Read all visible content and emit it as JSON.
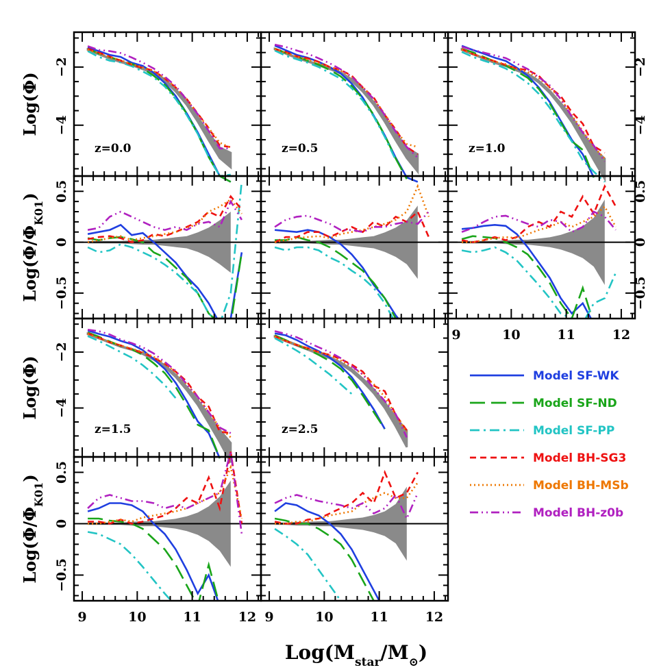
{
  "chart_data": {
    "type": "line",
    "xlabel": "Log(M_star/M_⊙)",
    "ylabel_top": "Log(Φ)",
    "ylabel_bottom": "Log(Φ/Φ_K01)",
    "xlim": [
      8.85,
      12.25
    ],
    "xticks": [
      9,
      10,
      11,
      12
    ],
    "ylim_top": [
      -5.75,
      -0.8
    ],
    "yticks_top": [
      -2,
      -4
    ],
    "ylim_bottom": [
      -0.75,
      0.65
    ],
    "yticks_bottom": [
      0.5,
      0,
      -0.5
    ],
    "x": [
      9.1,
      9.3,
      9.5,
      9.7,
      9.9,
      10.1,
      10.3,
      10.5,
      10.7,
      10.9,
      11.1,
      11.3,
      11.5,
      11.7,
      11.9
    ],
    "legend": [
      {
        "label": "Model SF-WK",
        "color": "#1f3fe0",
        "style": "solid"
      },
      {
        "label": "Model SF-ND",
        "color": "#1aa51a",
        "style": "longdash"
      },
      {
        "label": "Model SF-PP",
        "color": "#22c4c4",
        "style": "dashdot"
      },
      {
        "label": "Model BH-SG3",
        "color": "#ee1111",
        "style": "dash"
      },
      {
        "label": "Model BH-MSb",
        "color": "#ee7700",
        "style": "dotted"
      },
      {
        "label": "Model BH-z0b",
        "color": "#b020c0",
        "style": "dashdotdot"
      }
    ],
    "panels": [
      {
        "z": "z=0.0",
        "obs": [
          -1.4,
          -1.55,
          -1.7,
          -1.82,
          -1.92,
          -2.05,
          -2.2,
          -2.45,
          -2.8,
          -3.25,
          -3.8,
          -4.4,
          -4.95,
          -5.2,
          null
        ],
        "obs_err": [
          0.01,
          0.01,
          0.01,
          0.01,
          0.015,
          0.02,
          0.02,
          0.03,
          0.04,
          0.05,
          0.08,
          0.12,
          0.18,
          0.25,
          null
        ],
        "ratio": {
          "SF-WK": [
            0.08,
            0.1,
            0.12,
            0.17,
            0.07,
            0.09,
            0.0,
            -0.1,
            -0.2,
            -0.34,
            -0.45,
            -0.6,
            -0.8,
            -0.75,
            -0.1
          ],
          "SF-ND": [
            0.04,
            0.02,
            0.04,
            0.05,
            0.03,
            0.0,
            -0.1,
            -0.15,
            -0.25,
            -0.35,
            -0.5,
            -0.7,
            -0.8,
            -0.8,
            -0.1
          ],
          "SF-PP": [
            -0.05,
            -0.1,
            -0.08,
            -0.02,
            -0.05,
            -0.1,
            -0.15,
            -0.22,
            -0.3,
            -0.4,
            -0.5,
            -0.7,
            -0.8,
            -0.5,
            0.6
          ],
          "BH-SG3": [
            0.03,
            0.05,
            0.06,
            0.04,
            0.0,
            0.02,
            0.08,
            0.06,
            0.1,
            0.15,
            0.2,
            0.3,
            0.25,
            0.45,
            0.32
          ],
          "BH-MSb": [
            0.0,
            0.02,
            0.04,
            0.06,
            0.02,
            0.04,
            0.06,
            0.08,
            0.1,
            0.14,
            0.18,
            0.3,
            0.35,
            0.42,
            0.28
          ],
          "BH-z0b": [
            0.12,
            0.14,
            0.25,
            0.3,
            0.25,
            0.2,
            0.15,
            0.12,
            0.15,
            0.12,
            0.18,
            0.2,
            0.15,
            0.4,
            0.22
          ]
        }
      },
      {
        "z": "z=0.5",
        "obs": [
          -1.38,
          -1.53,
          -1.68,
          -1.8,
          -1.92,
          -2.05,
          -2.2,
          -2.45,
          -2.8,
          -3.25,
          -3.8,
          -4.4,
          -4.95,
          -5.3,
          null
        ],
        "obs_err": [
          0.01,
          0.01,
          0.01,
          0.01,
          0.015,
          0.02,
          0.02,
          0.03,
          0.04,
          0.05,
          0.08,
          0.12,
          0.18,
          0.3,
          null
        ],
        "ratio": {
          "SF-WK": [
            0.12,
            0.11,
            0.1,
            0.12,
            0.1,
            0.05,
            -0.02,
            -0.12,
            -0.25,
            -0.42,
            -0.55,
            -0.72,
            -0.85,
            -0.9,
            null
          ],
          "SF-ND": [
            0.02,
            0.02,
            0.05,
            0.02,
            0.0,
            -0.05,
            -0.12,
            -0.2,
            -0.28,
            -0.4,
            -0.55,
            -0.75,
            -0.9,
            null,
            null
          ],
          "SF-PP": [
            -0.05,
            -0.08,
            -0.05,
            -0.05,
            -0.08,
            -0.15,
            -0.2,
            -0.28,
            -0.35,
            -0.45,
            -0.6,
            -0.8,
            null,
            null,
            null
          ],
          "BH-SG3": [
            0.0,
            0.05,
            0.05,
            0.1,
            0.1,
            0.05,
            0.1,
            0.15,
            0.1,
            0.2,
            0.15,
            0.25,
            0.2,
            0.3,
            0.05
          ],
          "BH-MSb": [
            0.0,
            0.02,
            0.04,
            0.05,
            0.06,
            0.04,
            0.08,
            0.1,
            0.12,
            0.15,
            0.18,
            0.22,
            0.3,
            0.55,
            0.25
          ],
          "BH-z0b": [
            0.15,
            0.22,
            0.25,
            0.26,
            0.22,
            0.18,
            0.12,
            0.12,
            0.1,
            0.15,
            0.15,
            0.18,
            0.2,
            0.18,
            0.3
          ]
        }
      },
      {
        "z": "z=1.0",
        "obs": [
          -1.4,
          -1.55,
          -1.7,
          -1.85,
          -1.95,
          -2.1,
          -2.25,
          -2.5,
          -2.85,
          -3.3,
          -3.8,
          -4.4,
          -5.0,
          -5.5,
          null
        ],
        "obs_err": [
          0.01,
          0.01,
          0.01,
          0.01,
          0.015,
          0.02,
          0.02,
          0.03,
          0.04,
          0.06,
          0.09,
          0.13,
          0.2,
          0.35,
          null
        ],
        "ratio": {
          "SF-WK": [
            0.13,
            0.14,
            0.16,
            0.17,
            0.16,
            0.08,
            -0.05,
            -0.2,
            -0.35,
            -0.55,
            -0.7,
            -0.6,
            -0.8,
            null,
            null
          ],
          "SF-ND": [
            0.03,
            0.06,
            0.05,
            0.04,
            0.0,
            -0.05,
            -0.12,
            -0.25,
            -0.4,
            -0.6,
            -0.75,
            -0.45,
            -0.8,
            null,
            null
          ],
          "SF-PP": [
            -0.08,
            -0.1,
            -0.08,
            -0.05,
            -0.1,
            -0.18,
            -0.3,
            -0.42,
            -0.55,
            -0.7,
            -0.75,
            -0.8,
            -0.6,
            -0.55,
            -0.3
          ],
          "BH-SG3": [
            0.02,
            0.0,
            0.02,
            0.05,
            0.02,
            0.05,
            0.15,
            0.2,
            0.15,
            0.3,
            0.25,
            0.45,
            0.28,
            0.55,
            0.35
          ],
          "BH-MSb": [
            0.0,
            0.0,
            0.02,
            0.04,
            0.05,
            0.04,
            0.08,
            0.12,
            0.15,
            0.2,
            0.15,
            0.2,
            0.25,
            0.35,
            0.15
          ],
          "BH-z0b": [
            0.1,
            0.14,
            0.2,
            0.25,
            0.26,
            0.22,
            0.18,
            0.15,
            0.22,
            0.2,
            0.1,
            0.15,
            0.3,
            0.25,
            0.12
          ]
        }
      },
      {
        "z": "z=1.5",
        "obs": [
          -1.35,
          -1.5,
          -1.65,
          -1.8,
          -1.9,
          -2.05,
          -2.25,
          -2.5,
          -2.85,
          -3.3,
          -3.8,
          -4.4,
          -5.0,
          -5.6,
          null
        ],
        "obs_err": [
          0.01,
          0.01,
          0.01,
          0.01,
          0.015,
          0.02,
          0.02,
          0.03,
          0.04,
          0.06,
          0.09,
          0.14,
          0.22,
          0.35,
          null
        ],
        "ratio": {
          "SF-WK": [
            0.12,
            0.15,
            0.2,
            0.2,
            0.18,
            0.12,
            0.0,
            -0.1,
            -0.25,
            -0.45,
            -0.68,
            -0.5,
            -0.8,
            null,
            null
          ],
          "SF-ND": [
            0.05,
            0.05,
            0.03,
            0.02,
            0.0,
            -0.05,
            -0.15,
            -0.25,
            -0.4,
            -0.6,
            -0.8,
            -0.4,
            -0.8,
            null,
            null
          ],
          "SF-PP": [
            -0.08,
            -0.1,
            -0.15,
            -0.2,
            -0.3,
            -0.42,
            -0.55,
            -0.68,
            -0.8,
            null,
            null,
            null,
            null,
            null,
            null
          ],
          "BH-SG3": [
            0.02,
            0.02,
            0.0,
            0.04,
            0.0,
            0.02,
            0.05,
            0.08,
            0.15,
            0.25,
            0.2,
            0.45,
            0.15,
            0.7,
            0.0
          ],
          "BH-MSb": [
            0.0,
            0.0,
            0.02,
            0.04,
            0.02,
            0.06,
            0.08,
            0.1,
            0.12,
            0.15,
            0.2,
            0.25,
            0.3,
            0.55,
            0.05
          ],
          "BH-z0b": [
            0.15,
            0.25,
            0.28,
            0.25,
            0.22,
            0.22,
            0.2,
            0.15,
            0.18,
            0.15,
            0.2,
            0.25,
            0.3,
            0.7,
            -0.1
          ]
        }
      },
      {
        "z": "z=2.5",
        "obs": [
          -1.45,
          -1.6,
          -1.75,
          -1.9,
          -2.05,
          -2.2,
          -2.4,
          -2.65,
          -3.0,
          -3.4,
          -3.9,
          -4.5,
          -5.1,
          null,
          null
        ],
        "obs_err": [
          0.01,
          0.01,
          0.015,
          0.015,
          0.02,
          0.02,
          0.03,
          0.04,
          0.05,
          0.07,
          0.1,
          0.16,
          0.3,
          null,
          null
        ],
        "ratio": {
          "SF-WK": [
            0.12,
            0.2,
            0.18,
            0.12,
            0.08,
            0.0,
            -0.1,
            -0.25,
            -0.45,
            -0.65,
            -0.85,
            null,
            null,
            null,
            null
          ],
          "SF-ND": [
            0.05,
            0.03,
            0.0,
            0.0,
            -0.05,
            -0.12,
            -0.2,
            -0.35,
            -0.55,
            -0.75,
            -0.85,
            null,
            null,
            null,
            null
          ],
          "SF-PP": [
            -0.05,
            -0.12,
            -0.2,
            -0.3,
            -0.45,
            -0.6,
            -0.75,
            -0.85,
            null,
            null,
            null,
            null,
            null,
            null,
            null
          ],
          "BH-SG3": [
            0.02,
            0.0,
            0.0,
            0.04,
            0.05,
            0.1,
            0.15,
            0.2,
            0.3,
            0.2,
            0.5,
            0.25,
            0.3,
            0.5,
            null
          ],
          "BH-MSb": [
            0.0,
            0.0,
            0.02,
            0.02,
            0.05,
            0.08,
            0.1,
            0.12,
            0.2,
            0.25,
            0.3,
            0.25,
            0.25,
            0.4,
            null
          ],
          "BH-z0b": [
            0.2,
            0.25,
            0.28,
            0.25,
            0.22,
            0.2,
            0.18,
            0.15,
            0.2,
            0.1,
            0.15,
            0.28,
            0.05,
            0.3,
            null
          ]
        }
      }
    ]
  }
}
